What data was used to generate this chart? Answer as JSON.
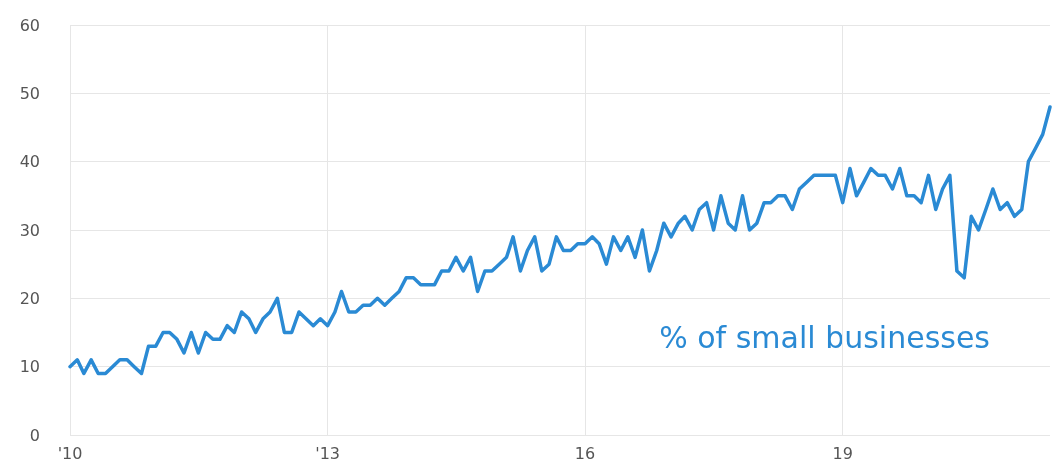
{
  "chart_data": {
    "type": "line",
    "x": [
      "2010-01",
      "2010-02",
      "2010-03",
      "2010-04",
      "2010-05",
      "2010-06",
      "2010-07",
      "2010-08",
      "2010-09",
      "2010-10",
      "2010-11",
      "2010-12",
      "2011-01",
      "2011-02",
      "2011-03",
      "2011-04",
      "2011-05",
      "2011-06",
      "2011-07",
      "2011-08",
      "2011-09",
      "2011-10",
      "2011-11",
      "2011-12",
      "2012-01",
      "2012-02",
      "2012-03",
      "2012-04",
      "2012-05",
      "2012-06",
      "2012-07",
      "2012-08",
      "2012-09",
      "2012-10",
      "2012-11",
      "2012-12",
      "2013-01",
      "2013-02",
      "2013-03",
      "2013-04",
      "2013-05",
      "2013-06",
      "2013-07",
      "2013-08",
      "2013-09",
      "2013-10",
      "2013-11",
      "2013-12",
      "2014-01",
      "2014-02",
      "2014-03",
      "2014-04",
      "2014-05",
      "2014-06",
      "2014-07",
      "2014-08",
      "2014-09",
      "2014-10",
      "2014-11",
      "2014-12",
      "2015-01",
      "2015-02",
      "2015-03",
      "2015-04",
      "2015-05",
      "2015-06",
      "2015-07",
      "2015-08",
      "2015-09",
      "2015-10",
      "2015-11",
      "2015-12",
      "2016-01",
      "2016-02",
      "2016-03",
      "2016-04",
      "2016-05",
      "2016-06",
      "2016-07",
      "2016-08",
      "2016-09",
      "2016-10",
      "2016-11",
      "2016-12",
      "2017-01",
      "2017-02",
      "2017-03",
      "2017-04",
      "2017-05",
      "2017-06",
      "2017-07",
      "2017-08",
      "2017-09",
      "2017-10",
      "2017-11",
      "2017-12",
      "2018-01",
      "2018-02",
      "2018-03",
      "2018-04",
      "2018-05",
      "2018-06",
      "2018-07",
      "2018-08",
      "2018-09",
      "2018-10",
      "2018-11",
      "2018-12",
      "2019-01",
      "2019-02",
      "2019-03",
      "2019-04",
      "2019-05",
      "2019-06",
      "2019-07",
      "2019-08",
      "2019-09",
      "2019-10",
      "2019-11",
      "2019-12",
      "2020-01",
      "2020-02",
      "2020-03",
      "2020-04",
      "2020-05",
      "2020-06",
      "2020-07",
      "2020-08",
      "2020-09",
      "2020-10",
      "2020-11",
      "2020-12",
      "2021-01",
      "2021-02",
      "2021-03",
      "2021-04",
      "2021-05",
      "2021-06"
    ],
    "series": [
      {
        "color": "#2a8ad4",
        "values": [
          10,
          11,
          9,
          11,
          9,
          9,
          10,
          11,
          11,
          10,
          9,
          13,
          13,
          15,
          15,
          14,
          12,
          15,
          12,
          15,
          14,
          14,
          16,
          15,
          18,
          17,
          15,
          17,
          18,
          20,
          15,
          15,
          18,
          17,
          16,
          17,
          16,
          18,
          21,
          18,
          18,
          19,
          19,
          20,
          19,
          20,
          21,
          23,
          23,
          22,
          22,
          22,
          24,
          24,
          26,
          24,
          26,
          21,
          24,
          24,
          25,
          26,
          29,
          24,
          27,
          29,
          24,
          25,
          29,
          27,
          27,
          28,
          28,
          29,
          28,
          25,
          29,
          27,
          29,
          26,
          30,
          24,
          27,
          31,
          29,
          31,
          32,
          30,
          33,
          34,
          30,
          35,
          31,
          30,
          35,
          30,
          31,
          34,
          34,
          35,
          35,
          33,
          36,
          37,
          38,
          38,
          38,
          38,
          34,
          39,
          35,
          37,
          39,
          38,
          38,
          36,
          39,
          35,
          35,
          34,
          38,
          33,
          36,
          38,
          24,
          23,
          32,
          30,
          33,
          36,
          33,
          34,
          32,
          33,
          40,
          42,
          44,
          48
        ]
      }
    ],
    "xlim": [
      "2010-01",
      "2021-06"
    ],
    "xticks": [
      {
        "value": "2010-01",
        "label": "'10"
      },
      {
        "value": "2013-01",
        "label": "'13"
      },
      {
        "value": "2016-01",
        "label": "16"
      },
      {
        "value": "2019-01",
        "label": "19"
      }
    ],
    "ylim": [
      0,
      60
    ],
    "yticks": [
      0,
      10,
      20,
      30,
      40,
      50,
      60
    ],
    "grid": true,
    "marker": "none",
    "line_style": "solid",
    "annotations": [
      "% of small businesses"
    ]
  }
}
